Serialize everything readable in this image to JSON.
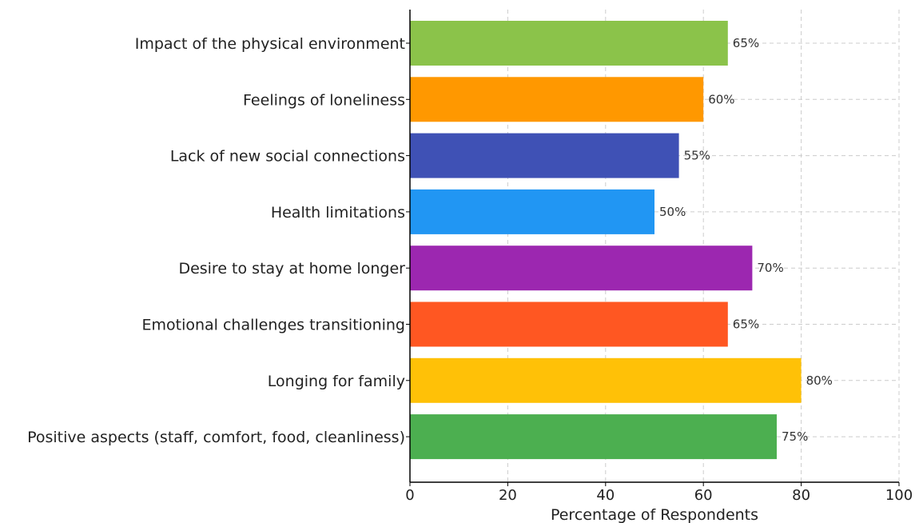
{
  "chart_data": {
    "type": "bar",
    "orientation": "horizontal",
    "categories": [
      "Impact of the physical environment",
      "Feelings of loneliness",
      "Lack of new social connections",
      "Health limitations",
      "Desire to stay at home longer",
      "Emotional challenges transitioning",
      "Longing for family",
      "Positive aspects (staff, comfort, food, cleanliness)"
    ],
    "values": [
      65,
      60,
      55,
      50,
      70,
      65,
      80,
      75
    ],
    "value_labels": [
      "65%",
      "60%",
      "55%",
      "50%",
      "70%",
      "65%",
      "80%",
      "75%"
    ],
    "colors": [
      "#8bc34a",
      "#ff9800",
      "#3f51b5",
      "#2196f3",
      "#9c27b0",
      "#ff5722",
      "#ffc107",
      "#4caf50"
    ],
    "xlabel": "Percentage of Respondents",
    "ylabel": "",
    "xlim": [
      0,
      100
    ],
    "xticks": [
      "0",
      "20",
      "40",
      "60",
      "80",
      "100"
    ],
    "grid": true
  }
}
